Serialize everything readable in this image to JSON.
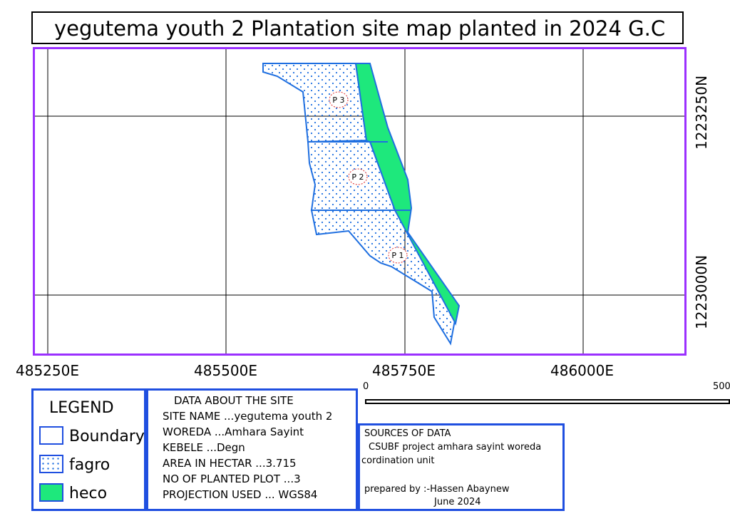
{
  "title": "yegutema youth 2 Plantation site map planted in 2024 G.C",
  "map": {
    "x_ticks": [
      "485250E",
      "485500E",
      "485750E",
      "486000E"
    ],
    "y_ticks": [
      "1223250N",
      "1223000N"
    ],
    "plots": [
      {
        "label": "P 3"
      },
      {
        "label": "P 2"
      },
      {
        "label": "P 1"
      }
    ],
    "colors": {
      "boundary": "#1f6fe0",
      "fagro_dot": "#1f6fe0",
      "heco": "#1ee87c",
      "frame": "#9b30ff",
      "plot_label_circle": "#e03030"
    }
  },
  "scale": {
    "start": "0",
    "end": "500"
  },
  "legend": {
    "title": "LEGEND",
    "items": [
      {
        "label": "Boundary",
        "style": "outline"
      },
      {
        "label": "fagro",
        "style": "dots"
      },
      {
        "label": "heco",
        "style": "green-fill"
      }
    ]
  },
  "site_info": {
    "heading": "DATA ABOUT THE SITE",
    "lines": [
      "SITE NAME ...yegutema youth 2",
      "WOREDA ...Amhara Sayint",
      "KEBELE ...Degn",
      "AREA IN HECTAR ...3.715",
      "NO OF PLANTED PLOT ...3",
      "PROJECTION USED ... WGS84"
    ]
  },
  "sources": {
    "heading": "SOURCES OF DATA",
    "line1": "CSUBF project amhara sayint woreda",
    "line2": "cordination unit",
    "prepared_by": "prepared by :-Hassen Abaynew",
    "date": "June 2024"
  }
}
